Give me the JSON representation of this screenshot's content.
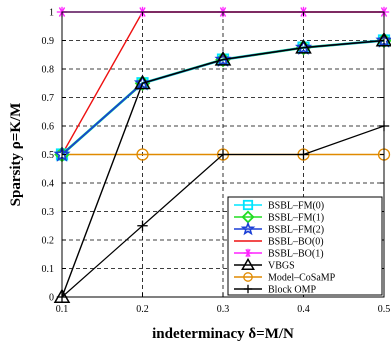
{
  "chart_data": {
    "type": "line",
    "title": "",
    "xlabel": "indeterminacy δ=M/N",
    "ylabel": "Sparsity ρ=K/M",
    "x": [
      0.1,
      0.2,
      0.3,
      0.4,
      0.5
    ],
    "xlim": [
      0.1,
      0.5
    ],
    "ylim": [
      0,
      1
    ],
    "xticks": [
      "0.1",
      "0.2",
      "0.3",
      "0.4",
      "0.5"
    ],
    "yticks": [
      "0",
      "0.1",
      "0.2",
      "0.3",
      "0.4",
      "0.5",
      "0.6",
      "0.7",
      "0.8",
      "0.9",
      "1"
    ],
    "grid": true,
    "grid_style": "dashed",
    "legend_position": "bottom-right",
    "series": [
      {
        "name": "BSBL–FM(0)",
        "values": [
          0.5,
          0.75,
          0.833,
          0.875,
          0.9
        ],
        "color": "#00e5ff",
        "marker": "square"
      },
      {
        "name": "BSBL–FM(1)",
        "values": [
          0.5,
          0.75,
          0.833,
          0.875,
          0.9
        ],
        "color": "#22dd22",
        "marker": "diamond"
      },
      {
        "name": "BSBL–FM(2)",
        "values": [
          0.5,
          0.75,
          0.833,
          0.875,
          0.9
        ],
        "color": "#1a3fd6",
        "marker": "star"
      },
      {
        "name": "BSBL–BO(0)",
        "values": [
          0.5,
          1,
          1,
          1,
          1
        ],
        "color": "#ee1111",
        "marker": "none"
      },
      {
        "name": "BSBL–BO(1)",
        "values": [
          1,
          1,
          1,
          1,
          1
        ],
        "color": "#ff22ff",
        "marker": "asterisk"
      },
      {
        "name": "VBGS",
        "values": [
          0,
          0.75,
          0.833,
          0.875,
          0.9
        ],
        "color": "#000000",
        "marker": "triangle"
      },
      {
        "name": "Model–CoSaMP",
        "values": [
          0.5,
          0.5,
          0.5,
          0.5,
          0.5
        ],
        "color": "#e08a00",
        "marker": "circle"
      },
      {
        "name": "Block OMP",
        "values": [
          0,
          0.25,
          0.5,
          0.5,
          0.6
        ],
        "color": "#000000",
        "marker": "plus"
      }
    ]
  }
}
